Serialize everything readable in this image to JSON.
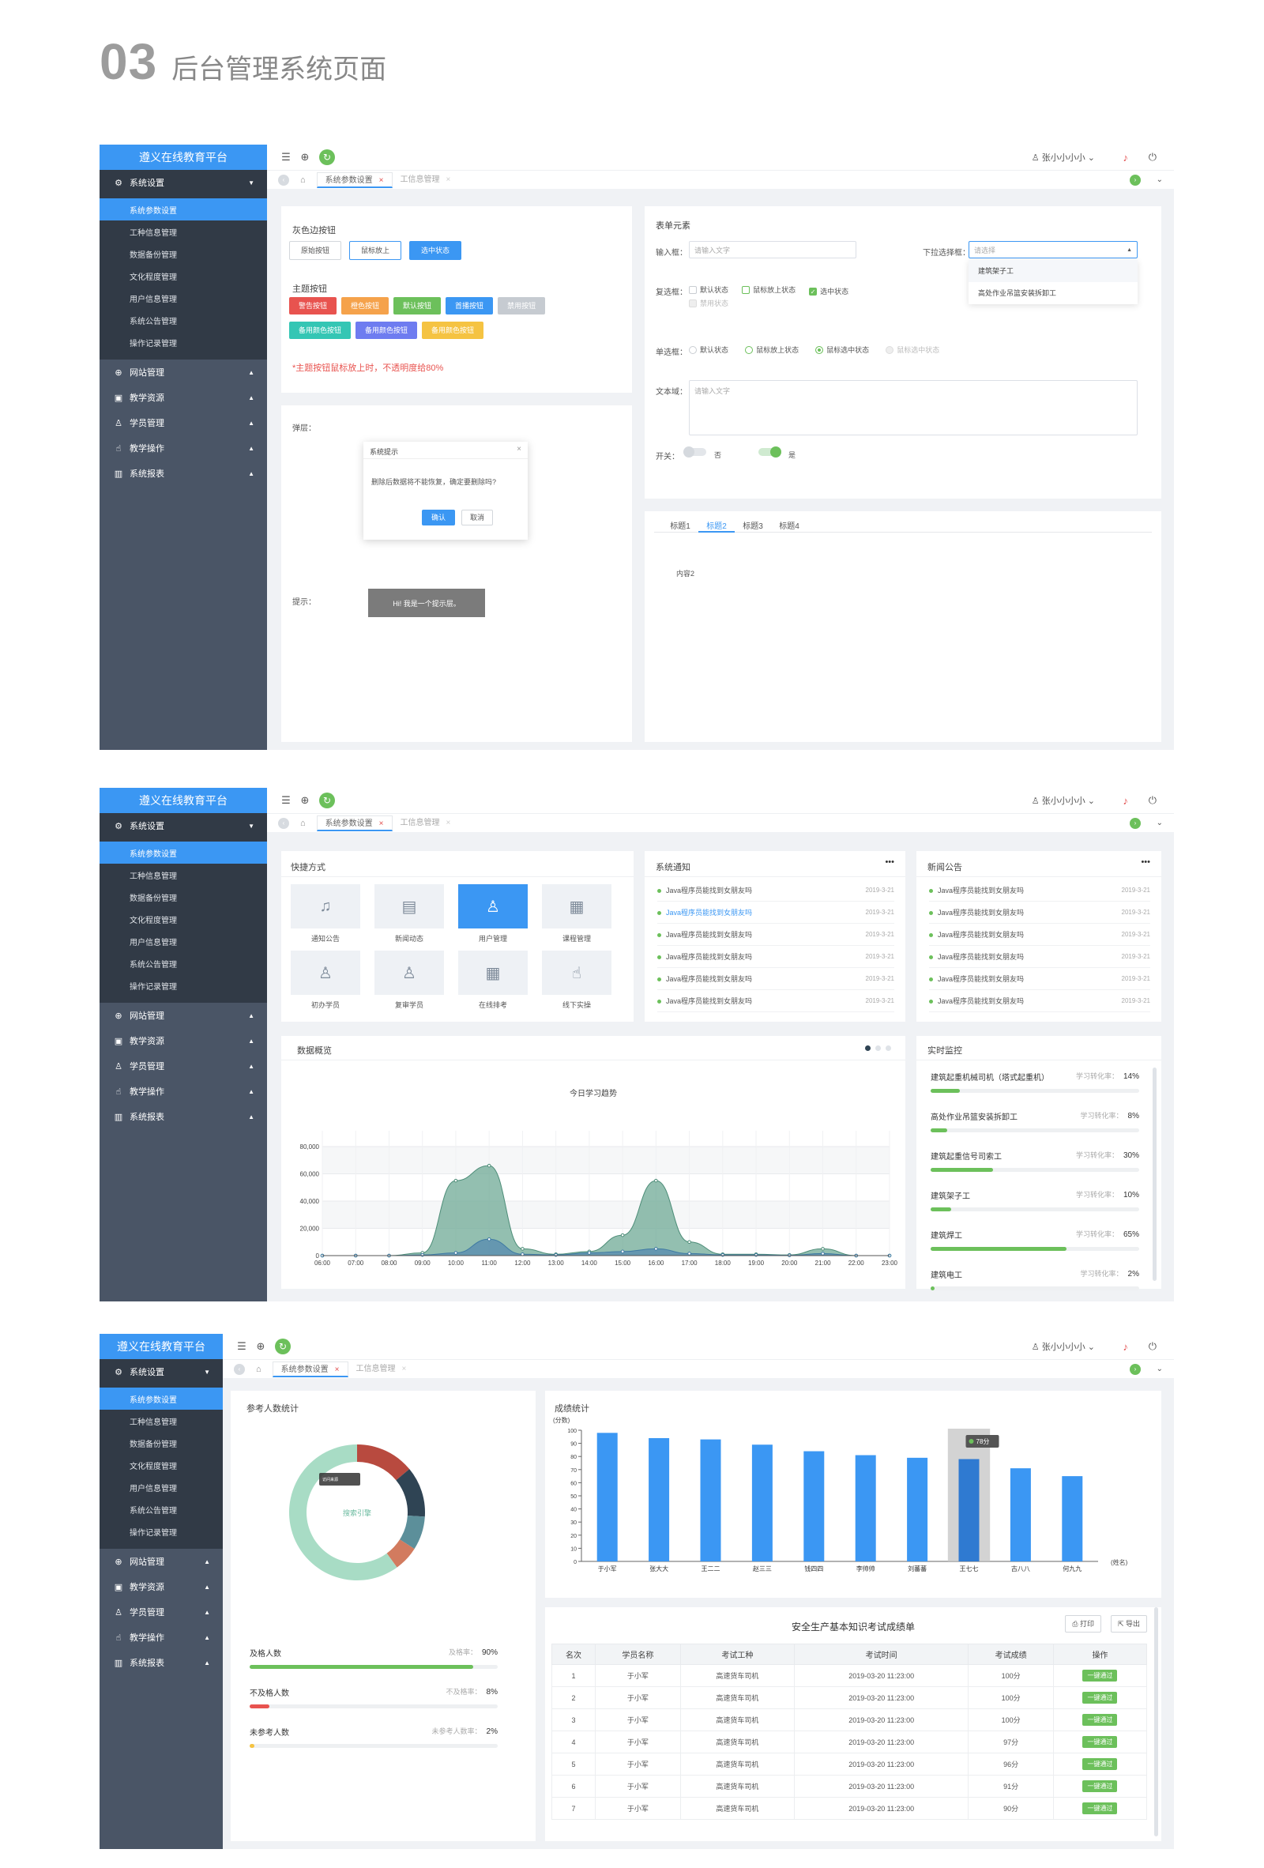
{
  "page": {
    "number": "03",
    "title": "后台管理系统页面"
  },
  "app": {
    "logo": "遵义在线教育平台",
    "user": "张小小小小",
    "nav_groups": [
      {
        "label": "系统设置",
        "icon": "gear-icon"
      },
      {
        "label": "网站管理",
        "icon": "globe-icon"
      },
      {
        "label": "教学资源",
        "icon": "book-icon"
      },
      {
        "label": "学员管理",
        "icon": "user-icon"
      },
      {
        "label": "教学操作",
        "icon": "hand-icon"
      },
      {
        "label": "系统报表",
        "icon": "chart-icon"
      }
    ],
    "sub_items": [
      "系统参数设置",
      "工种信息管理",
      "数据备份管理",
      "文化程度管理",
      "用户信息管理",
      "系统公告管理",
      "操作记录管理"
    ],
    "tabs": [
      {
        "label": "系统参数设置",
        "close": "×"
      },
      {
        "label": "工信息管理",
        "close": "×"
      }
    ]
  },
  "screen1": {
    "gray_title": "灰色边按钮",
    "gray_buttons": [
      "原始按钮",
      "鼠标放上",
      "选中状态"
    ],
    "theme_title": "主题按钮",
    "theme_buttons_row1": [
      {
        "label": "警告按钮",
        "color": "#e8534f"
      },
      {
        "label": "橙色按钮",
        "color": "#f5a24b"
      },
      {
        "label": "默认按钮",
        "color": "#6cc05b"
      },
      {
        "label": "首播按钮",
        "color": "#3b97f3"
      },
      {
        "label": "禁用按钮",
        "color": "#c6cbd1"
      }
    ],
    "theme_buttons_row2": [
      {
        "label": "备用颜色按钮",
        "color": "#34c6b4"
      },
      {
        "label": "备用颜色按钮",
        "color": "#6e7cf0"
      },
      {
        "label": "备用颜色按钮",
        "color": "#f5c342"
      }
    ],
    "theme_note": "*主题按钮鼠标放上时，不透明度给80%",
    "layer_label": "弹层：",
    "dialog": {
      "title": "系统提示",
      "close": "×",
      "message": "删除后数据将不能恢复，确定要删除吗?",
      "ok": "确认",
      "cancel": "取消"
    },
    "tip_label": "提示：",
    "tip_text": "Hi! 我是一个提示层。",
    "form_title": "表单元素",
    "input_label": "输入框：",
    "input_placeholder": "请输入文字",
    "select_label": "下拉选择框：",
    "select_placeholder": "请选择",
    "select_options": [
      "建筑架子工",
      "高处作业吊篮安装拆卸工"
    ],
    "checkbox_label": "复选框：",
    "checkboxes": [
      "默认状态",
      "鼠标放上状态",
      "选中状态",
      "禁用状态"
    ],
    "radio_label": "单选框：",
    "radios": [
      "默认状态",
      "鼠标放上状态",
      "鼠标选中状态",
      "鼠标选中状态"
    ],
    "textarea_label": "文本域：",
    "textarea_placeholder": "请输入文字",
    "switch_label": "开关：",
    "switch_off": "否",
    "switch_on": "是",
    "title_tabs": [
      "标题1",
      "标题2",
      "标题3",
      "标题4"
    ],
    "tab_content": "内容2"
  },
  "screen2": {
    "shortcut_title": "快捷方式",
    "shortcuts": [
      {
        "label": "通知公告",
        "icon": "bell-icon"
      },
      {
        "label": "新闻动态",
        "icon": "news-icon"
      },
      {
        "label": "用户管理",
        "icon": "user-gear-icon"
      },
      {
        "label": "课程管理",
        "icon": "course-icon"
      },
      {
        "label": "初办学员",
        "icon": "student-icon"
      },
      {
        "label": "复审学员",
        "icon": "review-icon"
      },
      {
        "label": "在线排考",
        "icon": "calendar-icon"
      },
      {
        "label": "线下实操",
        "icon": "practice-icon"
      }
    ],
    "notice_title": "系统通知",
    "news_title": "新闻公告",
    "more": "•••",
    "list_items": [
      {
        "text": "Java程序员能找到女朋友吗",
        "date": "2019-3-21"
      },
      {
        "text": "Java程序员能找到女朋友吗",
        "date": "2019-3-21"
      },
      {
        "text": "Java程序员能找到女朋友吗",
        "date": "2019-3-21"
      },
      {
        "text": "Java程序员能找到女朋友吗",
        "date": "2019-3-21"
      },
      {
        "text": "Java程序员能找到女朋友吗",
        "date": "2019-3-21"
      },
      {
        "text": "Java程序员能找到女朋友吗",
        "date": "2019-3-21"
      }
    ],
    "overview_title": "数据概览",
    "monitor_title": "实时监控",
    "rate_label": "学习转化率：",
    "monitor_items": [
      {
        "name": "建筑起重机械司机（塔式起重机）",
        "rate": "14%",
        "value": 0.14
      },
      {
        "name": "高处作业吊篮安装拆卸工",
        "rate": "8%",
        "value": 0.08
      },
      {
        "name": "建筑起重信号司索工",
        "rate": "30%",
        "value": 0.3
      },
      {
        "name": "建筑架子工",
        "rate": "10%",
        "value": 0.1
      },
      {
        "name": "建筑焊工",
        "rate": "65%",
        "value": 0.65
      },
      {
        "name": "建筑电工",
        "rate": "2%",
        "value": 0.02
      }
    ]
  },
  "screen3": {
    "count_title": "参考人数统计",
    "donut_center": "搜索引擎",
    "donut_tooltip": "访问来源",
    "stats": [
      {
        "label": "及格人数",
        "rate_label": "及格率：",
        "rate": "90%",
        "value": 0.9,
        "color": "#6cc05b"
      },
      {
        "label": "不及格人数",
        "rate_label": "不及格率：",
        "rate": "8%",
        "value": 0.08,
        "color": "#e8534f"
      },
      {
        "label": "未参考人数",
        "rate_label": "未参考人数率：",
        "rate": "2%",
        "value": 0.02,
        "color": "#f5c342"
      }
    ],
    "score_title": "成绩统计",
    "table_title": "安全生产基本知识考试成绩单",
    "print": "打印",
    "export": "导出",
    "columns": [
      "名次",
      "学员名称",
      "考试工种",
      "考试时间",
      "考试成绩",
      "操作"
    ],
    "rows": [
      [
        "1",
        "于小军",
        "高速货车司机",
        "2019-03-20 11:23:00",
        "100分"
      ],
      [
        "2",
        "于小军",
        "高速货车司机",
        "2019-03-20 11:23:00",
        "100分"
      ],
      [
        "3",
        "于小军",
        "高速货车司机",
        "2019-03-20 11:23:00",
        "100分"
      ],
      [
        "4",
        "于小军",
        "高速货车司机",
        "2019-03-20 11:23:00",
        "97分"
      ],
      [
        "5",
        "于小军",
        "高速货车司机",
        "2019-03-20 11:23:00",
        "96分"
      ],
      [
        "6",
        "于小军",
        "高速货车司机",
        "2019-03-20 11:23:00",
        "91分"
      ],
      [
        "7",
        "于小军",
        "高速货车司机",
        "2019-03-20 11:23:00",
        "90分"
      ]
    ],
    "action": "一键通过"
  },
  "chart_data": [
    {
      "type": "area",
      "title": "今日学习趋势",
      "x": [
        "06:00",
        "07:00",
        "08:00",
        "09:00",
        "10:00",
        "11:00",
        "12:00",
        "13:00",
        "14:00",
        "15:00",
        "16:00",
        "17:00",
        "18:00",
        "19:00",
        "20:00",
        "21:00",
        "22:00",
        "23:00"
      ],
      "series": [
        {
          "values": [
            0,
            0,
            0,
            2000,
            55000,
            66000,
            5000,
            1000,
            3000,
            15000,
            55000,
            10000,
            1000,
            1000,
            500,
            5000,
            0,
            0
          ]
        },
        {
          "values": [
            0,
            0,
            0,
            500,
            2000,
            12000,
            1000,
            500,
            2000,
            3000,
            5000,
            1500,
            500,
            500,
            200,
            1500,
            0,
            0
          ]
        }
      ],
      "yticks": [
        "0",
        "20,000",
        "40,000",
        "60,000",
        "80,000"
      ],
      "ylim": [
        0,
        80000
      ],
      "grid": true
    },
    {
      "type": "pie",
      "center_label": "搜索引擎",
      "series": [
        {
          "values": [
            14,
            12,
            8,
            6,
            60
          ],
          "colors": [
            "#b84a3f",
            "#2f4454",
            "#5c8f9a",
            "#d27b5f",
            "#a8dcc5"
          ]
        }
      ]
    },
    {
      "type": "bar",
      "ylabel": "(分数)",
      "xlabel": "(姓名)",
      "categories": [
        "于小军",
        "张大大",
        "王二二",
        "赵三三",
        "钱四四",
        "李帅帅",
        "刘蕃蕃",
        "王七七",
        "古八八",
        "何九九"
      ],
      "values": [
        98,
        94,
        93,
        89,
        84,
        81,
        79,
        78,
        71,
        65
      ],
      "ylim": [
        0,
        100
      ],
      "yticks": [
        "0",
        "10",
        "20",
        "30",
        "40",
        "50",
        "60",
        "70",
        "80",
        "90",
        "100"
      ],
      "highlight": {
        "category": "王七七",
        "label": "78分"
      }
    }
  ]
}
